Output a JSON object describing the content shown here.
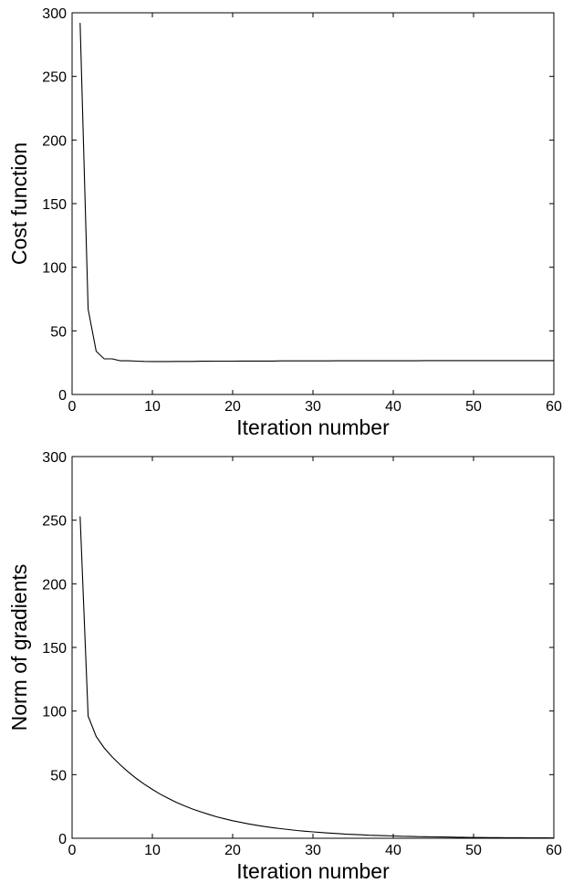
{
  "chart_data": [
    {
      "type": "line",
      "title": "",
      "xlabel": "Iteration number",
      "ylabel": "Cost function",
      "xlim": [
        0,
        60
      ],
      "ylim": [
        0,
        300
      ],
      "xticks": [
        0,
        10,
        20,
        30,
        40,
        50,
        60
      ],
      "yticks": [
        0,
        50,
        100,
        150,
        200,
        250,
        300
      ],
      "grid": false,
      "legend": "none",
      "series": [
        {
          "x": [
            1,
            2,
            3,
            4,
            5,
            6,
            7,
            8,
            9,
            10,
            11,
            12,
            13,
            14,
            15,
            16,
            17,
            18,
            19,
            20,
            21,
            22,
            23,
            24,
            25,
            26,
            27,
            28,
            29,
            30,
            31,
            32,
            33,
            34,
            35,
            36,
            37,
            38,
            39,
            40,
            41,
            42,
            43,
            44,
            45,
            46,
            47,
            48,
            49,
            50,
            51,
            52,
            53,
            54,
            55,
            56,
            57,
            58,
            59,
            60
          ],
          "values": [
            292,
            67,
            34,
            28,
            28,
            26.5,
            26.5,
            26.2,
            26.0,
            25.9,
            25.9,
            25.9,
            26.0,
            26.0,
            26.0,
            26.1,
            26.1,
            26.2,
            26.2,
            26.2,
            26.3,
            26.3,
            26.3,
            26.3,
            26.3,
            26.4,
            26.4,
            26.4,
            26.4,
            26.4,
            26.4,
            26.4,
            26.5,
            26.5,
            26.5,
            26.5,
            26.5,
            26.5,
            26.5,
            26.5,
            26.5,
            26.5,
            26.5,
            26.6,
            26.6,
            26.6,
            26.6,
            26.6,
            26.6,
            26.6,
            26.6,
            26.6,
            26.6,
            26.6,
            26.6,
            26.6,
            26.6,
            26.6,
            26.6,
            26.6
          ],
          "color": "#000000"
        }
      ]
    },
    {
      "type": "line",
      "title": "",
      "xlabel": "Iteration number",
      "ylabel": "Norm of gradients",
      "xlim": [
        0,
        60
      ],
      "ylim": [
        0,
        300
      ],
      "xticks": [
        0,
        10,
        20,
        30,
        40,
        50,
        60
      ],
      "yticks": [
        0,
        50,
        100,
        150,
        200,
        250,
        300
      ],
      "grid": false,
      "legend": "none",
      "series": [
        {
          "x": [
            1,
            2,
            3,
            4,
            5,
            6,
            7,
            8,
            9,
            10,
            11,
            12,
            13,
            14,
            15,
            16,
            17,
            18,
            19,
            20,
            21,
            22,
            23,
            24,
            25,
            26,
            27,
            28,
            29,
            30,
            31,
            32,
            33,
            34,
            35,
            36,
            37,
            38,
            39,
            40,
            41,
            42,
            43,
            44,
            45,
            46,
            47,
            48,
            49,
            50,
            51,
            52,
            53,
            54,
            55,
            56,
            57,
            58,
            59,
            60
          ],
          "values": [
            253,
            96,
            80,
            71,
            63.9,
            57.7,
            52.1,
            47.0,
            42.5,
            38.4,
            34.6,
            31.3,
            28.2,
            25.5,
            23.0,
            20.8,
            18.8,
            16.9,
            15.3,
            13.8,
            12.5,
            11.3,
            10.2,
            9.2,
            8.3,
            7.5,
            6.8,
            6.1,
            5.5,
            5.0,
            4.5,
            4.1,
            3.7,
            3.3,
            3.0,
            2.7,
            2.4,
            2.2,
            2.0,
            1.8,
            1.6,
            1.5,
            1.3,
            1.2,
            1.1,
            1.0,
            0.9,
            0.8,
            0.7,
            0.6,
            0.6,
            0.5,
            0.5,
            0.4,
            0.4,
            0.4,
            0.3,
            0.3,
            0.3,
            0.2
          ],
          "color": "#000000"
        }
      ]
    }
  ]
}
